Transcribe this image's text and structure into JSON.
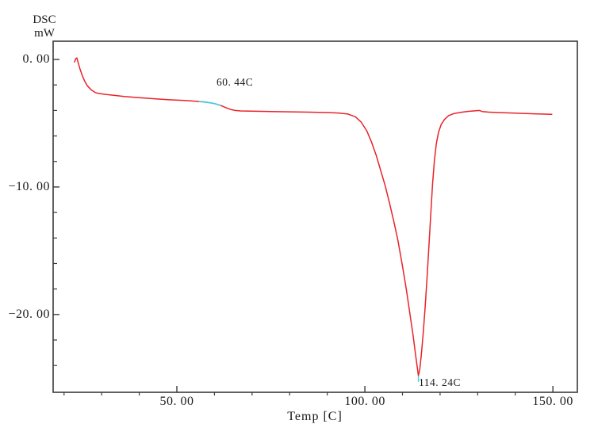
{
  "page": {
    "background": "#ffffff"
  },
  "axis_titles": {
    "y_unit_line1": "DSC",
    "y_unit_line2": "mW",
    "x_title": "Temp [C]"
  },
  "chart_data": {
    "type": "line",
    "title": "",
    "xlabel": "Temp [C]",
    "ylabel": "DSC (mW)",
    "xlim": [
      17.1,
      156.5
    ],
    "ylim": [
      -26.1,
      1.43
    ],
    "grid": false,
    "legend": "none",
    "frame_color": "#3a3a3a",
    "x_ticks_major": {
      "values": [
        50,
        100,
        150
      ],
      "labels": [
        "50. 00",
        "100. 00",
        "150. 00"
      ]
    },
    "x_ticks_minor": [
      20,
      30,
      40,
      60,
      70,
      80,
      90,
      110,
      120,
      130,
      140
    ],
    "y_ticks_major": {
      "values": [
        0,
        -10,
        -20
      ],
      "labels": [
        "0. 00",
        "−10. 00",
        "−20. 00"
      ]
    },
    "y_ticks_minor": [
      -2,
      -4,
      -6,
      -8,
      -12,
      -14,
      -16,
      -18,
      -22,
      -24
    ],
    "annotations": [
      {
        "text": "60. 44C",
        "temp": 60.44,
        "mw": -2.15
      },
      {
        "text": "114. 24C",
        "temp": 114.24,
        "mw": -25.7
      }
    ],
    "series": [
      {
        "name": "dsc-heat-flow",
        "color": "#e8232a",
        "width": 1.5,
        "points": [
          [
            22.8,
            -0.2
          ],
          [
            23.1,
            0.05
          ],
          [
            23.4,
            0.12
          ],
          [
            23.8,
            -0.3
          ],
          [
            24.3,
            -0.8
          ],
          [
            24.9,
            -1.3
          ],
          [
            25.5,
            -1.7
          ],
          [
            26.2,
            -2.06
          ],
          [
            27.2,
            -2.38
          ],
          [
            28.3,
            -2.6
          ],
          [
            29.5,
            -2.68
          ],
          [
            31,
            -2.74
          ],
          [
            33,
            -2.8
          ],
          [
            36,
            -2.9
          ],
          [
            40,
            -3.0
          ],
          [
            44,
            -3.08
          ],
          [
            48,
            -3.16
          ],
          [
            52,
            -3.22
          ],
          [
            55,
            -3.28
          ],
          [
            57,
            -3.32
          ],
          [
            59,
            -3.4
          ],
          [
            60.5,
            -3.5
          ],
          [
            61.8,
            -3.62
          ],
          [
            63,
            -3.78
          ],
          [
            64.3,
            -3.92
          ],
          [
            65.5,
            -4.0
          ],
          [
            67,
            -4.04
          ],
          [
            70,
            -4.06
          ],
          [
            75,
            -4.09
          ],
          [
            80,
            -4.11
          ],
          [
            85,
            -4.13
          ],
          [
            90,
            -4.16
          ],
          [
            93,
            -4.2
          ],
          [
            95.5,
            -4.28
          ],
          [
            97.5,
            -4.5
          ],
          [
            99,
            -4.9
          ],
          [
            100.5,
            -5.6
          ],
          [
            101.8,
            -6.5
          ],
          [
            103,
            -7.5
          ],
          [
            104.2,
            -8.7
          ],
          [
            105.4,
            -9.9
          ],
          [
            106.5,
            -11.2
          ],
          [
            107.7,
            -12.7
          ],
          [
            108.8,
            -14.2
          ],
          [
            110,
            -16.2
          ],
          [
            111,
            -18.0
          ],
          [
            112,
            -20.0
          ],
          [
            112.8,
            -21.6
          ],
          [
            113.5,
            -23.2
          ],
          [
            114,
            -24.3
          ],
          [
            114.24,
            -24.8
          ],
          [
            114.6,
            -24.3
          ],
          [
            115,
            -23.2
          ],
          [
            115.5,
            -21.5
          ],
          [
            116,
            -19.5
          ],
          [
            116.5,
            -17.3
          ],
          [
            117,
            -14.8
          ],
          [
            117.5,
            -12.2
          ],
          [
            118,
            -9.8
          ],
          [
            118.5,
            -7.9
          ],
          [
            119,
            -6.6
          ],
          [
            119.6,
            -5.7
          ],
          [
            120.3,
            -5.1
          ],
          [
            121.2,
            -4.7
          ],
          [
            122.3,
            -4.4
          ],
          [
            123.6,
            -4.25
          ],
          [
            125.5,
            -4.15
          ],
          [
            127.5,
            -4.07
          ],
          [
            129.5,
            -4.02
          ],
          [
            130.5,
            -4.0
          ],
          [
            131.2,
            -4.08
          ],
          [
            133,
            -4.13
          ],
          [
            136,
            -4.17
          ],
          [
            140,
            -4.21
          ],
          [
            145,
            -4.26
          ],
          [
            149.7,
            -4.3
          ]
        ]
      },
      {
        "name": "transition-onset-marker",
        "color": "#49cede",
        "width": 1.7,
        "points": [
          [
            56,
            -3.3
          ],
          [
            58,
            -3.36
          ],
          [
            60,
            -3.46
          ],
          [
            61.5,
            -3.6
          ]
        ]
      },
      {
        "name": "peak-minimum-marker",
        "color": "#49cede",
        "width": 1.5,
        "points": [
          [
            114.24,
            -24.85
          ],
          [
            114.24,
            -25.25
          ]
        ]
      }
    ]
  }
}
